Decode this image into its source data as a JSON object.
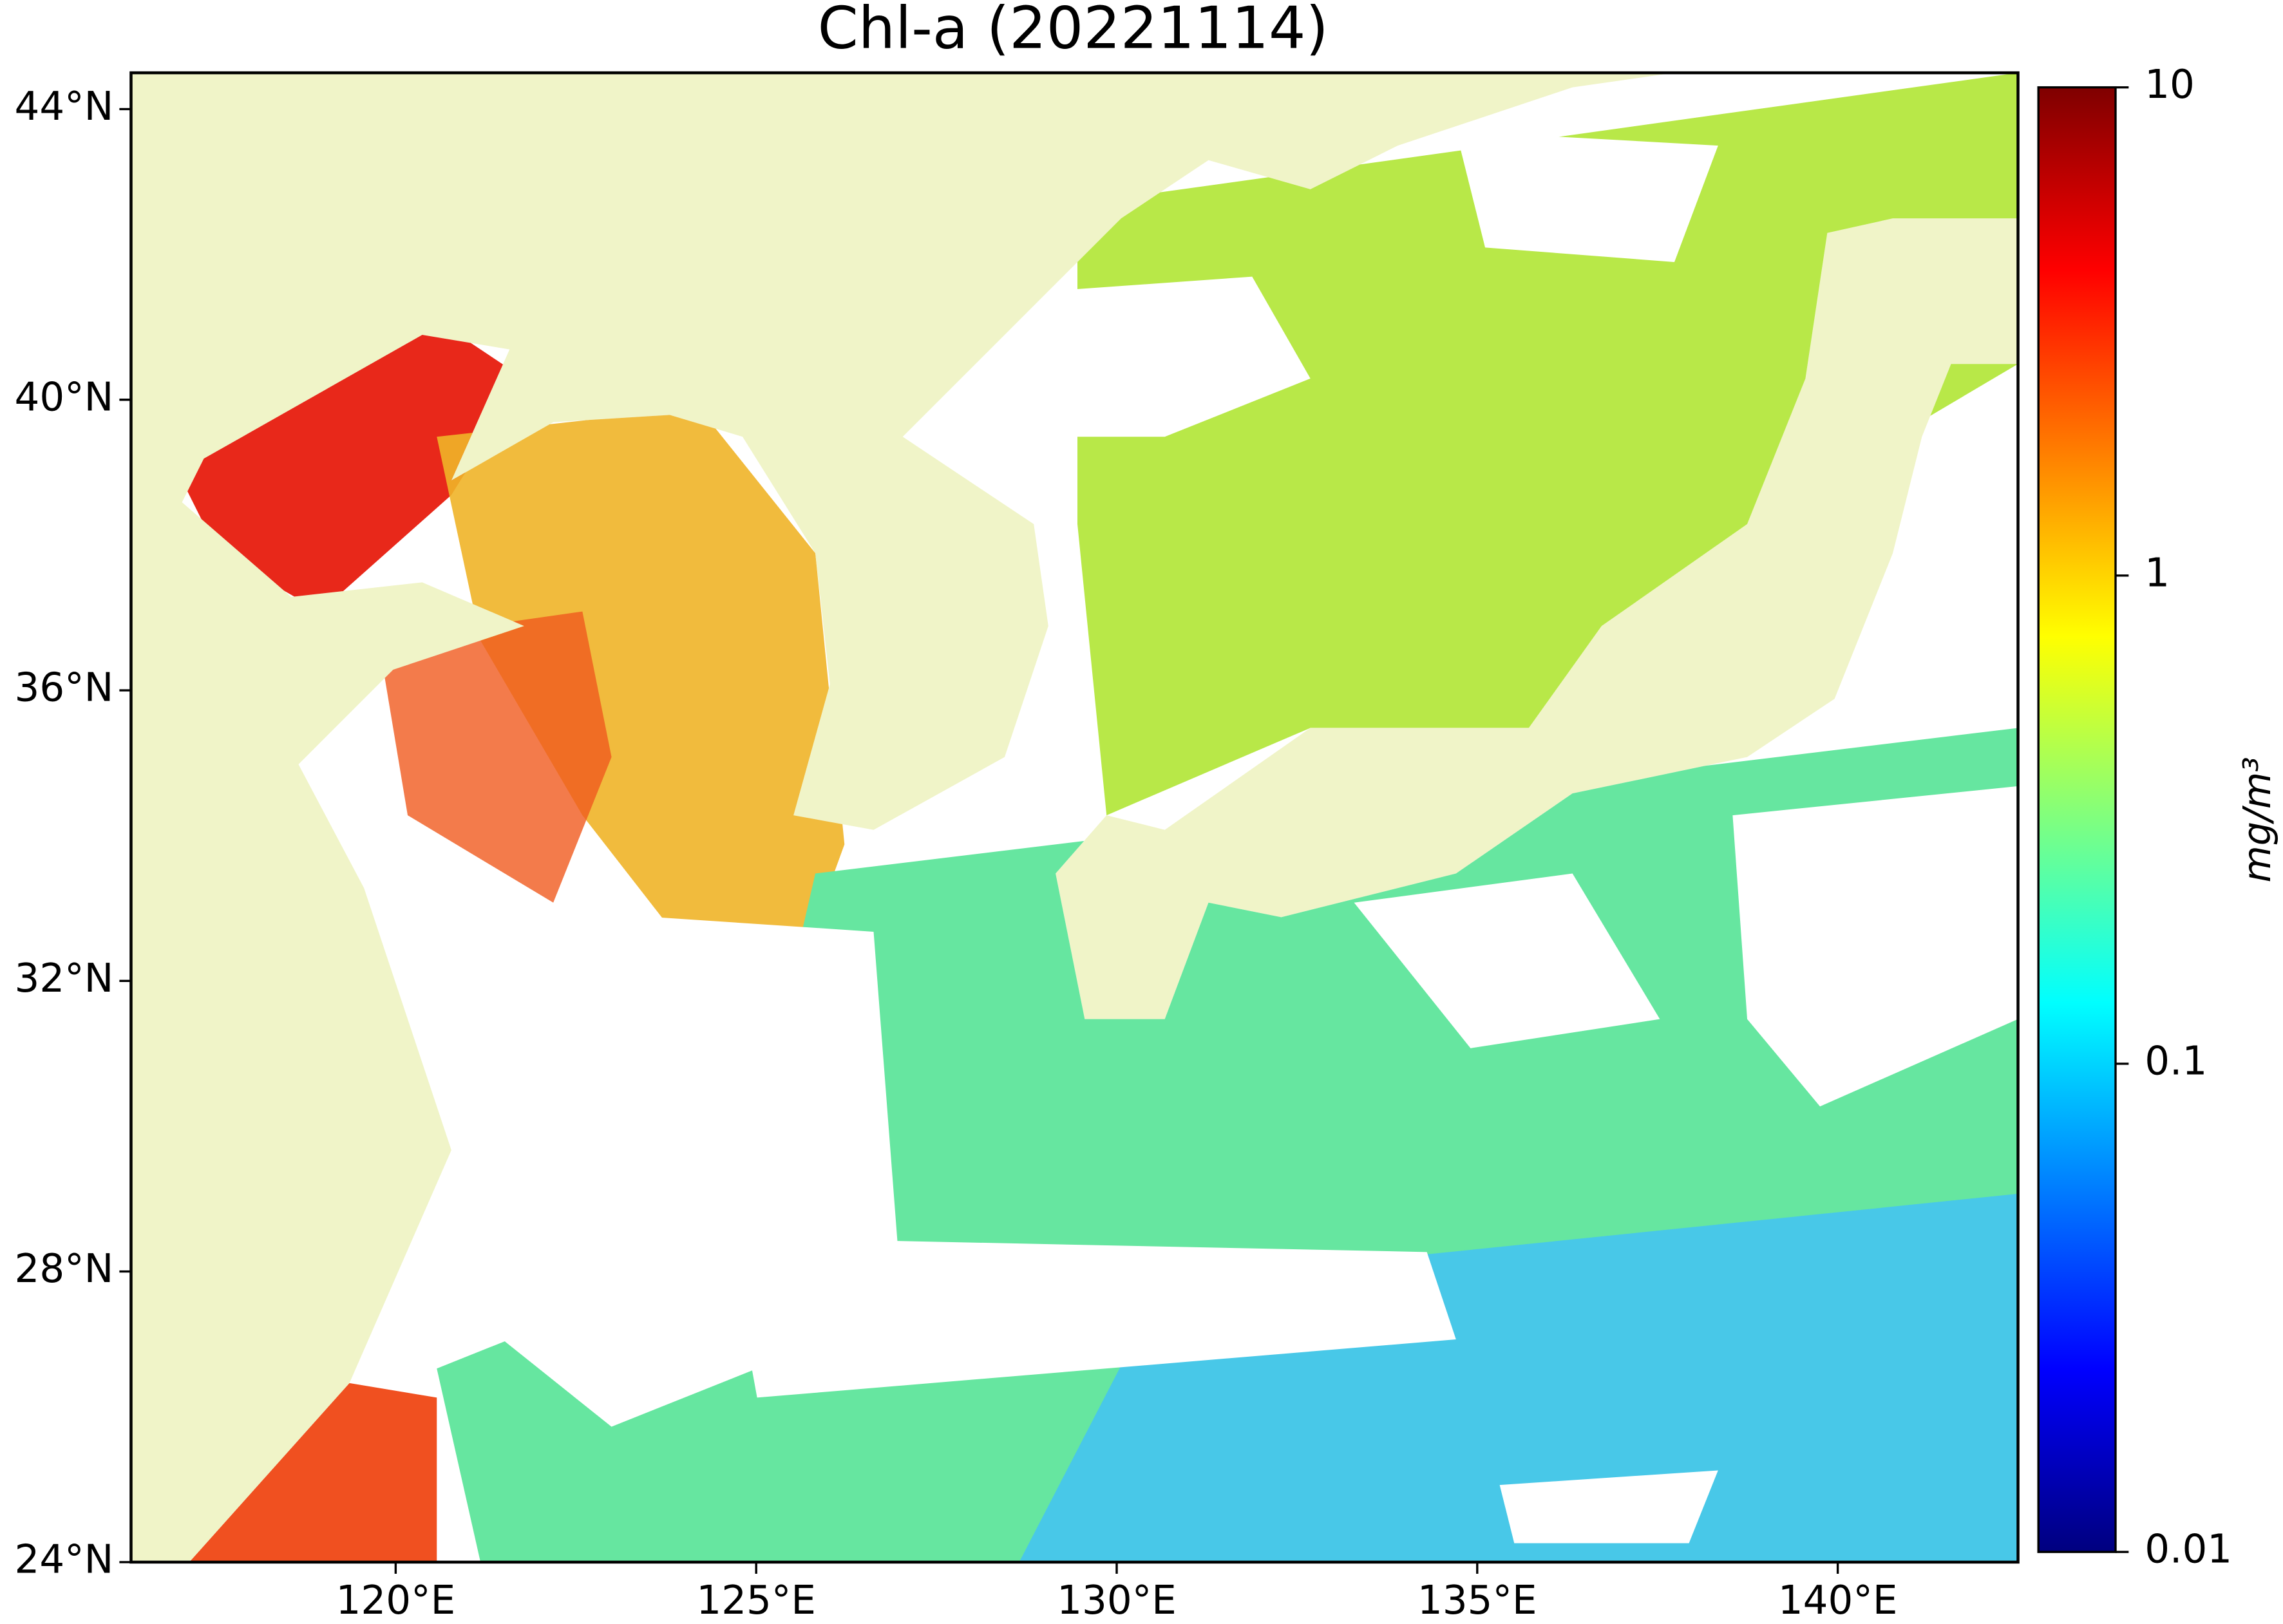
{
  "chart_data": {
    "type": "map",
    "title": "Chl-a (20221114)",
    "xlim": [
      116.33,
      142.5
    ],
    "ylim": [
      24,
      44.5
    ],
    "xticks": [
      {
        "value": 120,
        "label": "120°E"
      },
      {
        "value": 125,
        "label": "125°E"
      },
      {
        "value": 130,
        "label": "130°E"
      },
      {
        "value": 135,
        "label": "135°E"
      },
      {
        "value": 140,
        "label": "140°E"
      }
    ],
    "yticks": [
      {
        "value": 24,
        "label": "24°N"
      },
      {
        "value": 28,
        "label": "28°N"
      },
      {
        "value": 32,
        "label": "32°N"
      },
      {
        "value": 36,
        "label": "36°N"
      },
      {
        "value": 40,
        "label": "40°N"
      },
      {
        "value": 44,
        "label": "44°N"
      }
    ],
    "land_color": "#f0f4c8",
    "colorbar": {
      "label": "mg/m³",
      "scale": "log",
      "lim": [
        0.01,
        10
      ],
      "ticks": [
        0.01,
        0.1,
        1,
        10
      ],
      "colormap": [
        "#00007f",
        "#0000ff",
        "#007fff",
        "#00ffff",
        "#7fff7f",
        "#ffff00",
        "#ff7f00",
        "#ff0000",
        "#7f0000"
      ]
    }
  }
}
